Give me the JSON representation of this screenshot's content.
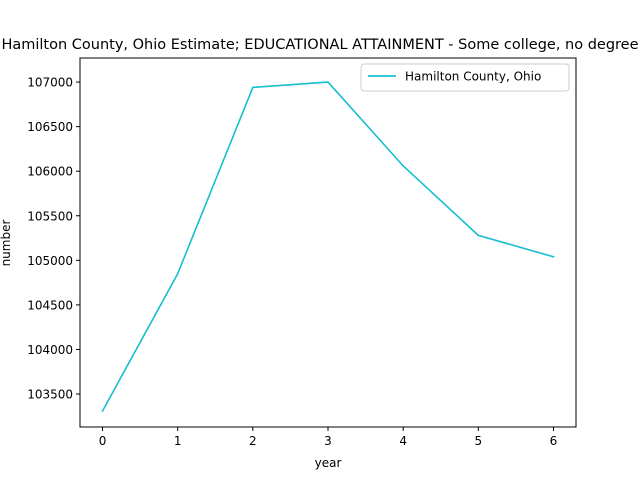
{
  "chart_data": {
    "type": "line",
    "title": "Hamilton County, Ohio Estimate; EDUCATIONAL ATTAINMENT - Some college, no degree",
    "xlabel": "year",
    "ylabel": "number",
    "x": [
      0,
      1,
      2,
      3,
      4,
      5,
      6
    ],
    "xticks": [
      "0",
      "1",
      "2",
      "3",
      "4",
      "5",
      "6"
    ],
    "yticks": [
      "103500",
      "104000",
      "104500",
      "105000",
      "105500",
      "106000",
      "106500",
      "107000"
    ],
    "xlim": [
      -0.3,
      6.3
    ],
    "ylim": [
      103130,
      107270
    ],
    "grid": false,
    "legend_position": "top-right",
    "series": [
      {
        "name": "Hamilton County, Ohio",
        "color": "#17becf",
        "values": [
          103310,
          104850,
          106940,
          107000,
          106060,
          105280,
          105040
        ]
      }
    ]
  }
}
